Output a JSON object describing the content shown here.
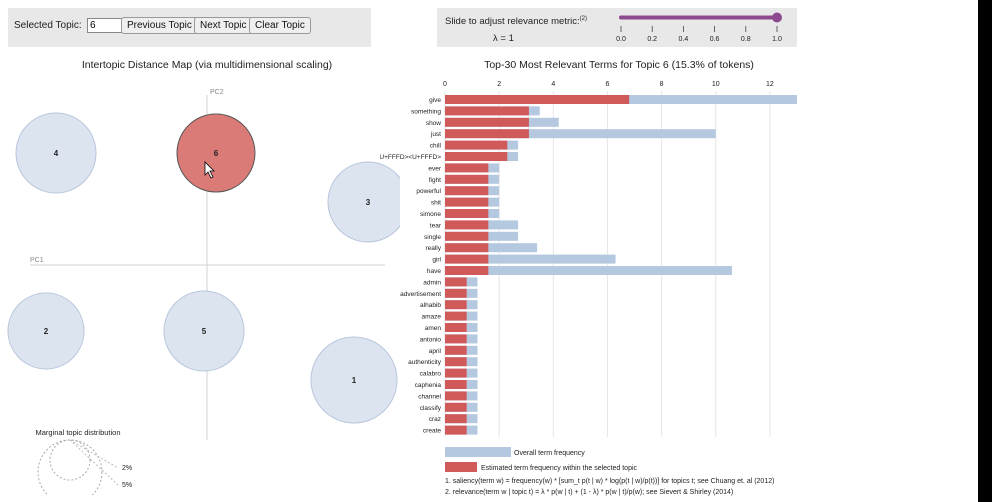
{
  "controls": {
    "topic_label": "Selected Topic:",
    "topic_value": "6",
    "prev_label": "Previous Topic",
    "next_label": "Next Topic",
    "clear_label": "Clear Topic"
  },
  "slider": {
    "label": "Slide to adjust relevance metric:",
    "label_sup": "(2)",
    "lambda_text": "λ = 1",
    "value": 1,
    "ticks": [
      "0.0",
      "0.2",
      "0.4",
      "0.6",
      "0.8",
      "1.0"
    ],
    "track_color": "#8e4a8e"
  },
  "left": {
    "title": "Intertopic Distance Map (via multidimensional scaling)",
    "pc1": "PC1",
    "pc2": "PC2",
    "topics": [
      {
        "id": "1",
        "selected": false
      },
      {
        "id": "2",
        "selected": false
      },
      {
        "id": "3",
        "selected": false
      },
      {
        "id": "4",
        "selected": false
      },
      {
        "id": "5",
        "selected": false
      },
      {
        "id": "6",
        "selected": true
      }
    ],
    "marginal_title": "Marginal topic distribution",
    "marginal_2": "2%",
    "marginal_5": "5%"
  },
  "right": {
    "title": "Top-30 Most Relevant Terms for Topic 6 (15.3% of tokens)",
    "legend_overall": "Overall term frequency",
    "legend_estimated": "Estimated term frequency within the selected topic",
    "footnote1": "1. saliency(term w) = frequency(w) * [sum_t p(t | w) * log(p(t | w)/p(t))] for topics t; see Chuang et. al (2012)",
    "footnote2": "2. relevance(term w | topic t) = λ * p(w | t) + (1 - λ) * p(w | t)/p(w); see Sievert & Shirley (2014)"
  },
  "colors": {
    "overall": "#b4c8e0",
    "estimated": "#d05a5a",
    "bubble": "#dce4f0",
    "bubble_selected": "#da7b78"
  },
  "chart_data": {
    "type": "bar",
    "orientation": "horizontal",
    "title": "Top-30 Most Relevant Terms for Topic 6 (15.3% of tokens)",
    "xlim": [
      0,
      13
    ],
    "xticks": [
      0,
      2,
      4,
      6,
      8,
      10,
      12
    ],
    "categories": [
      "give",
      "something",
      "show",
      "just",
      "chill",
      "didn<U+FFFD><U+FFFD>",
      "ever",
      "fight",
      "powerful",
      "shit",
      "simone",
      "tear",
      "single",
      "really",
      "girl",
      "have",
      "admin",
      "advertisement",
      "alhabib",
      "amaze",
      "amen",
      "antonio",
      "april",
      "authenticity",
      "calabro",
      "caphenia",
      "channel",
      "classify",
      "craz",
      "create"
    ],
    "series": [
      {
        "name": "Overall term frequency",
        "values": [
          13,
          3.5,
          4.2,
          10,
          2.7,
          2.7,
          2.0,
          2.0,
          2.0,
          2.0,
          2.0,
          2.7,
          2.7,
          3.4,
          6.3,
          10.6,
          1.2,
          1.2,
          1.2,
          1.2,
          1.2,
          1.2,
          1.2,
          1.2,
          1.2,
          1.2,
          1.2,
          1.2,
          1.2,
          1.2
        ]
      },
      {
        "name": "Estimated term frequency within the selected topic",
        "values": [
          6.8,
          3.1,
          3.1,
          3.1,
          2.3,
          2.3,
          1.6,
          1.6,
          1.6,
          1.6,
          1.6,
          1.6,
          1.6,
          1.6,
          1.6,
          1.6,
          0.8,
          0.8,
          0.8,
          0.8,
          0.8,
          0.8,
          0.8,
          0.8,
          0.8,
          0.8,
          0.8,
          0.8,
          0.8,
          0.8
        ]
      }
    ]
  }
}
